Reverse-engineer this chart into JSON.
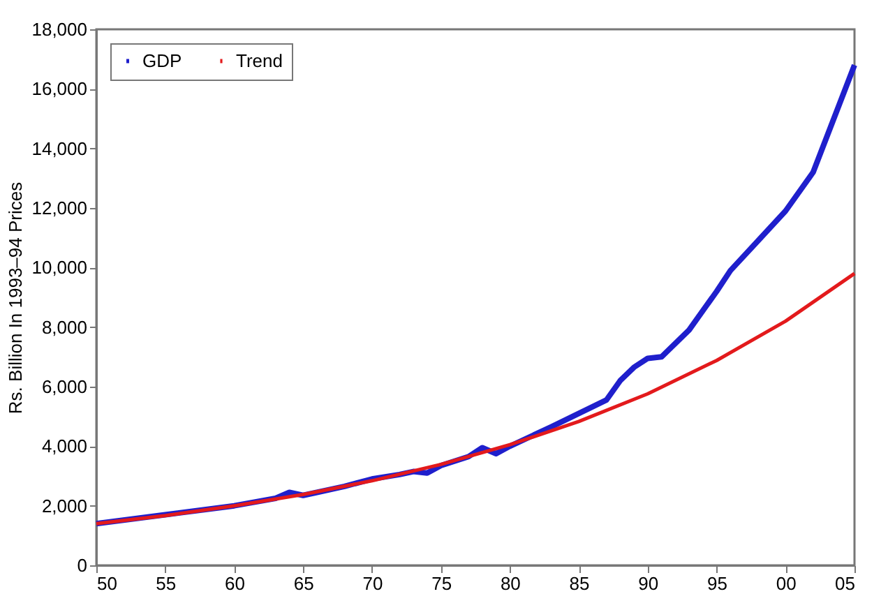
{
  "chart_data": {
    "type": "line",
    "ylabel": "Rs. Billion In 1993–94 Prices",
    "xlim": [
      1950,
      2005
    ],
    "xticks": [
      {
        "value": 1950,
        "label": "50"
      },
      {
        "value": 1955,
        "label": "55"
      },
      {
        "value": 1960,
        "label": "60"
      },
      {
        "value": 1965,
        "label": "65"
      },
      {
        "value": 1970,
        "label": "70"
      },
      {
        "value": 1975,
        "label": "75"
      },
      {
        "value": 1980,
        "label": "80"
      },
      {
        "value": 1985,
        "label": "85"
      },
      {
        "value": 1990,
        "label": "90"
      },
      {
        "value": 1995,
        "label": "95"
      },
      {
        "value": 2000,
        "label": "00"
      },
      {
        "value": 2005,
        "label": "05"
      }
    ],
    "ylim": [
      0,
      18000
    ],
    "yticks": [
      {
        "value": 0,
        "label": "0"
      },
      {
        "value": 2000,
        "label": "2,000"
      },
      {
        "value": 4000,
        "label": "4,000"
      },
      {
        "value": 6000,
        "label": "6,000"
      },
      {
        "value": 8000,
        "label": "8,000"
      },
      {
        "value": 10000,
        "label": "10,000"
      },
      {
        "value": 12000,
        "label": "12,000"
      },
      {
        "value": 14000,
        "label": "14,000"
      },
      {
        "value": 16000,
        "label": "16,000"
      },
      {
        "value": 18000,
        "label": "18,000"
      }
    ],
    "grid": false,
    "legend": "top left",
    "line_style": "solid",
    "marker": "none",
    "series": [
      {
        "name": "GDP",
        "color": "#1f1fcc",
        "x": [
          1950,
          1955,
          1960,
          1963,
          1964,
          1965,
          1966,
          1968,
          1970,
          1972,
          1973,
          1974,
          1975,
          1977,
          1978,
          1979,
          1980,
          1983,
          1985,
          1987,
          1988,
          1989,
          1990,
          1991,
          1993,
          1995,
          1996,
          1998,
          2000,
          2002,
          2005
        ],
        "values": [
          1400,
          1700,
          2000,
          2250,
          2450,
          2350,
          2450,
          2650,
          2900,
          3050,
          3150,
          3100,
          3350,
          3650,
          3950,
          3750,
          4000,
          4650,
          5100,
          5550,
          6200,
          6650,
          6950,
          7000,
          7900,
          9200,
          9900,
          10900,
          11900,
          13200,
          16800
        ]
      },
      {
        "name": "Trend",
        "color": "#e31a1c",
        "x": [
          1950,
          1955,
          1960,
          1965,
          1970,
          1975,
          1980,
          1985,
          1990,
          1995,
          2000,
          2005
        ],
        "values": [
          1400,
          1670,
          2000,
          2380,
          2840,
          3390,
          4050,
          4830,
          5760,
          6880,
          8200,
          9800
        ]
      }
    ]
  }
}
